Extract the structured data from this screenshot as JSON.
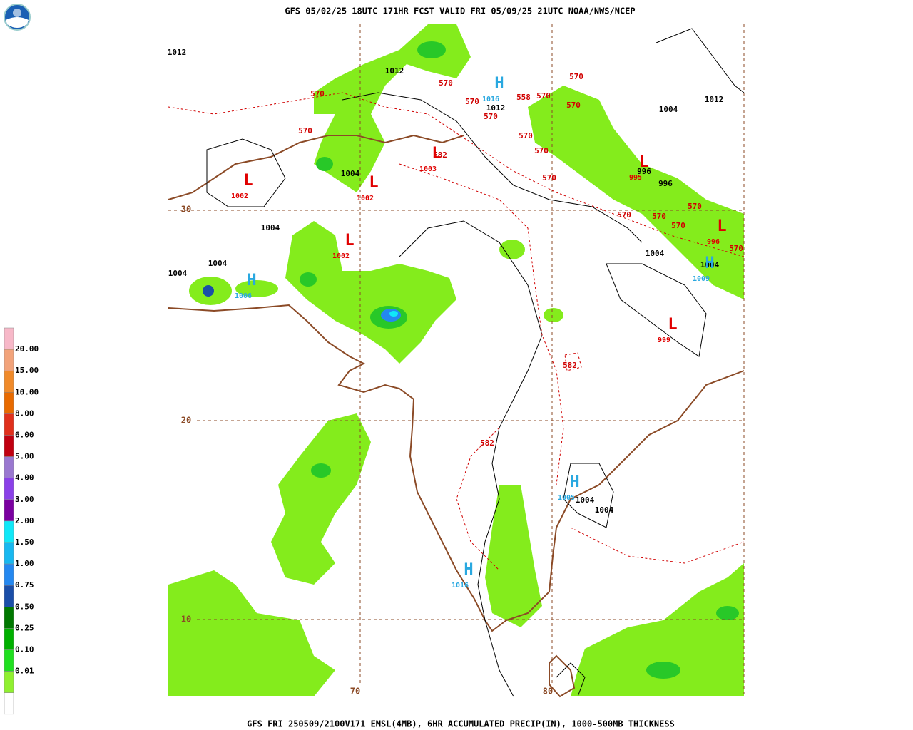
{
  "header": "GFS 05/02/25 18UTC 171HR FCST VALID FRI 05/09/25 21UTC NOAA/NWS/NCEP",
  "footer": "GFS FRI 250509/2100V171 EMSL(4MB), 6HR ACCUMULATED PRECIP(IN), 1000-500MB THICKNESS",
  "legend": {
    "labels": [
      "20.00",
      "15.00",
      "10.00",
      "8.00",
      "6.00",
      "5.00",
      "4.00",
      "3.00",
      "2.00",
      "1.50",
      "1.00",
      "0.75",
      "0.50",
      "0.25",
      "0.10",
      "0.01"
    ],
    "colors": [
      "#f7b8c8",
      "#f2a37a",
      "#f08a2a",
      "#e86a00",
      "#e0301c",
      "#c00010",
      "#9a78d0",
      "#8a40e8",
      "#7a00a0",
      "#10e8f8",
      "#18b8f0",
      "#2488f0",
      "#1a4ea8",
      "#007800",
      "#00b000",
      "#20e020",
      "#90f030",
      "#ffffff"
    ]
  },
  "map": {
    "latitudes": [
      "30",
      "20",
      "10"
    ],
    "longitudes": [
      "70",
      "80"
    ],
    "isobar_labels": [
      "1012",
      "1012",
      "1012",
      "1012",
      "1004",
      "1004",
      "1004",
      "1004",
      "1004",
      "996",
      "996",
      "1004",
      "1004",
      "1004",
      "1004"
    ],
    "thickness_labels": [
      "570",
      "570",
      "570",
      "570",
      "570",
      "558",
      "570",
      "570",
      "570",
      "570",
      "570",
      "570",
      "582",
      "570",
      "570",
      "570",
      "570",
      "570",
      "582",
      "582"
    ],
    "centers": [
      {
        "symbol": "H",
        "pressure": "1016"
      },
      {
        "symbol": "L",
        "pressure": "1003"
      },
      {
        "symbol": "L",
        "pressure": "1002"
      },
      {
        "symbol": "L",
        "pressure": "1002"
      },
      {
        "symbol": "L",
        "pressure": "1002"
      },
      {
        "symbol": "H",
        "pressure": "1006"
      },
      {
        "symbol": "L",
        "pressure": "995"
      },
      {
        "symbol": "L",
        "pressure": "996"
      },
      {
        "symbol": "H",
        "pressure": "1009"
      },
      {
        "symbol": "L",
        "pressure": "999"
      },
      {
        "symbol": "H",
        "pressure": "1005"
      },
      {
        "symbol": "H",
        "pressure": "1016"
      }
    ]
  }
}
